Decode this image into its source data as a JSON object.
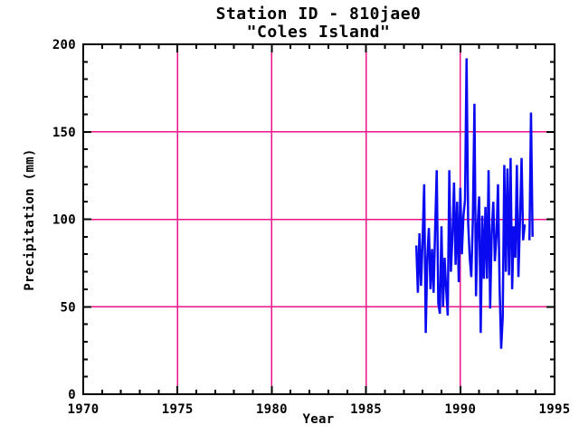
{
  "figure": {
    "title_line1": "Station ID - 810jae0",
    "title_line2": "\"Coles Island\"",
    "xlabel": "Year",
    "ylabel": "Precipitation (mm)"
  },
  "colors": {
    "background": "#ffffff",
    "axis": "#000000",
    "grid": "#ee1289",
    "line": "#0a0af0",
    "text": "#000000"
  },
  "chart_data": {
    "type": "line",
    "title": "Station ID - 810jae0",
    "subtitle": "\"Coles Island\"",
    "xlabel": "Year",
    "ylabel": "Precipitation (mm)",
    "xlim": [
      1970,
      1995
    ],
    "ylim": [
      0,
      200
    ],
    "x_major_ticks": [
      1970,
      1975,
      1980,
      1985,
      1990,
      1995
    ],
    "x_minor_step": 1,
    "y_major_ticks": [
      0,
      50,
      100,
      150,
      200
    ],
    "y_minor_step": 10,
    "grid_x": [
      1975,
      1980,
      1985,
      1990
    ],
    "grid_y": [
      50,
      100,
      150
    ],
    "grid_on": true,
    "legend": null,
    "series": [
      {
        "name": "monthly_precipitation_mm",
        "points": [
          [
            1987.667,
            85
          ],
          [
            1987.75,
            58
          ],
          [
            1987.833,
            92
          ],
          [
            1987.917,
            62
          ],
          [
            1988.0,
            88
          ],
          [
            1988.083,
            120
          ],
          [
            1988.167,
            35
          ],
          [
            1988.25,
            78
          ],
          [
            1988.333,
            95
          ],
          [
            1988.417,
            60
          ],
          [
            1988.5,
            83
          ],
          [
            1988.583,
            58
          ],
          [
            1988.667,
            95
          ],
          [
            1988.75,
            128
          ],
          [
            1988.833,
            52
          ],
          [
            1988.917,
            46
          ],
          [
            1989.0,
            96
          ],
          [
            1989.083,
            50
          ],
          [
            1989.167,
            78
          ],
          [
            1989.25,
            60
          ],
          [
            1989.333,
            45
          ],
          [
            1989.417,
            128
          ],
          [
            1989.5,
            70
          ],
          [
            1989.583,
            90
          ],
          [
            1989.667,
            121
          ],
          [
            1989.75,
            74
          ],
          [
            1989.833,
            110
          ],
          [
            1989.917,
            64
          ],
          [
            1990.0,
            118
          ],
          [
            1990.083,
            80
          ],
          [
            1990.167,
            102
          ],
          [
            1990.25,
            111
          ],
          [
            1990.333,
            192
          ],
          [
            1990.417,
            98
          ],
          [
            1990.5,
            78
          ],
          [
            1990.583,
            67
          ],
          [
            1990.667,
            100
          ],
          [
            1990.75,
            166
          ],
          [
            1990.833,
            56
          ],
          [
            1990.917,
            96
          ],
          [
            1991.0,
            113
          ],
          [
            1991.083,
            35
          ],
          [
            1991.167,
            102
          ],
          [
            1991.25,
            66
          ],
          [
            1991.333,
            107
          ],
          [
            1991.417,
            66
          ],
          [
            1991.5,
            128
          ],
          [
            1991.583,
            49
          ],
          [
            1991.667,
            93
          ],
          [
            1991.75,
            110
          ],
          [
            1991.833,
            76
          ],
          [
            1991.917,
            90
          ],
          [
            1992.0,
            120
          ],
          [
            1992.083,
            62
          ],
          [
            1992.167,
            26
          ],
          [
            1992.25,
            44
          ],
          [
            1992.333,
            131
          ],
          [
            1992.417,
            70
          ],
          [
            1992.5,
            129
          ],
          [
            1992.583,
            68
          ],
          [
            1992.667,
            135
          ],
          [
            1992.75,
            60
          ],
          [
            1992.833,
            96
          ],
          [
            1992.917,
            78
          ],
          [
            1993.0,
            131
          ],
          [
            1993.083,
            67
          ],
          [
            1993.167,
            100
          ],
          [
            1993.25,
            135
          ],
          [
            1993.333,
            88
          ],
          [
            1993.417,
            97
          ],
          [
            1993.5,
            null
          ],
          [
            1993.583,
            null
          ],
          [
            1993.667,
            88
          ],
          [
            1993.75,
            161
          ],
          [
            1993.833,
            90
          ]
        ]
      }
    ]
  }
}
